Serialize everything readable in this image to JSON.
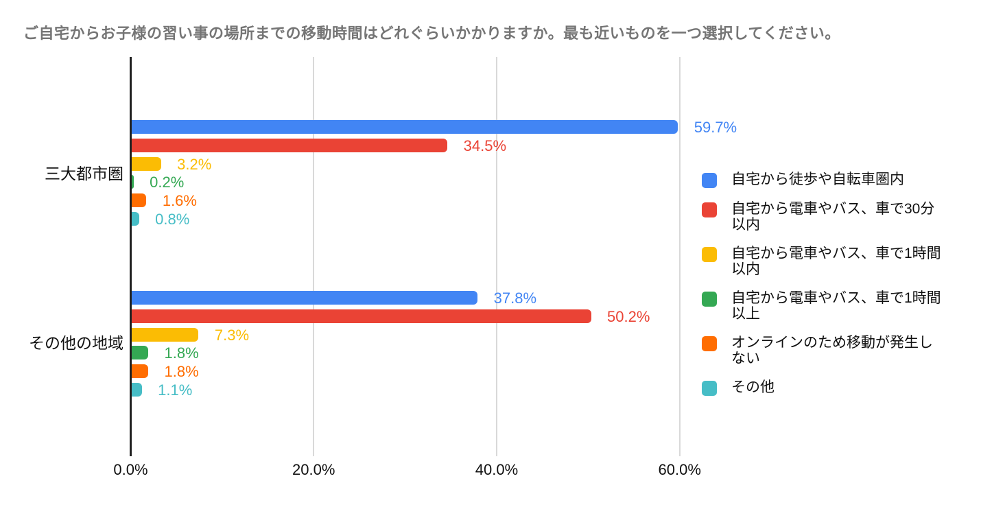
{
  "title": "ご自宅からお子様の習い事の場所までの移動時間はどれぐらいかかりますか。最も近いものを一つ選択してください。",
  "chart_data": {
    "type": "bar",
    "orientation": "horizontal",
    "title": "ご自宅からお子様の習い事の場所までの移動時間はどれぐらいかかりますか。最も近いものを一つ選択してください。",
    "categories": [
      "三大都市圏",
      "その他の地域"
    ],
    "series": [
      {
        "name": "自宅から徒歩や自転車圏内",
        "color": "#4285F4",
        "values": [
          59.7,
          37.8
        ]
      },
      {
        "name": "自宅から電車やバス、車で30分以内",
        "color": "#EA4335",
        "values": [
          34.5,
          50.2
        ]
      },
      {
        "name": "自宅から電車やバス、車で1時間以内",
        "color": "#FBBC04",
        "values": [
          3.2,
          7.3
        ]
      },
      {
        "name": "自宅から電車やバス、車で1時間以上",
        "color": "#34A853",
        "values": [
          0.2,
          1.8
        ]
      },
      {
        "name": "オンラインのため移動が発生しない",
        "color": "#FF6D01",
        "values": [
          1.6,
          1.8
        ]
      },
      {
        "name": "その他",
        "color": "#46BDC6",
        "values": [
          0.8,
          1.1
        ]
      }
    ],
    "value_label_format": "percent_one_decimal",
    "x_ticks": [
      {
        "label": "0.0%",
        "value": 0
      },
      {
        "label": "20.0%",
        "value": 20
      },
      {
        "label": "40.0%",
        "value": 40
      },
      {
        "label": "60.0%",
        "value": 60
      }
    ],
    "xlim": [
      0,
      61.5
    ],
    "grid": true,
    "legend_position": "right"
  },
  "colors": {
    "title_text": "#757575",
    "axis_text": "#111111",
    "axis_line": "#212121",
    "gridline": "#d9d9d9",
    "background": "#ffffff"
  }
}
